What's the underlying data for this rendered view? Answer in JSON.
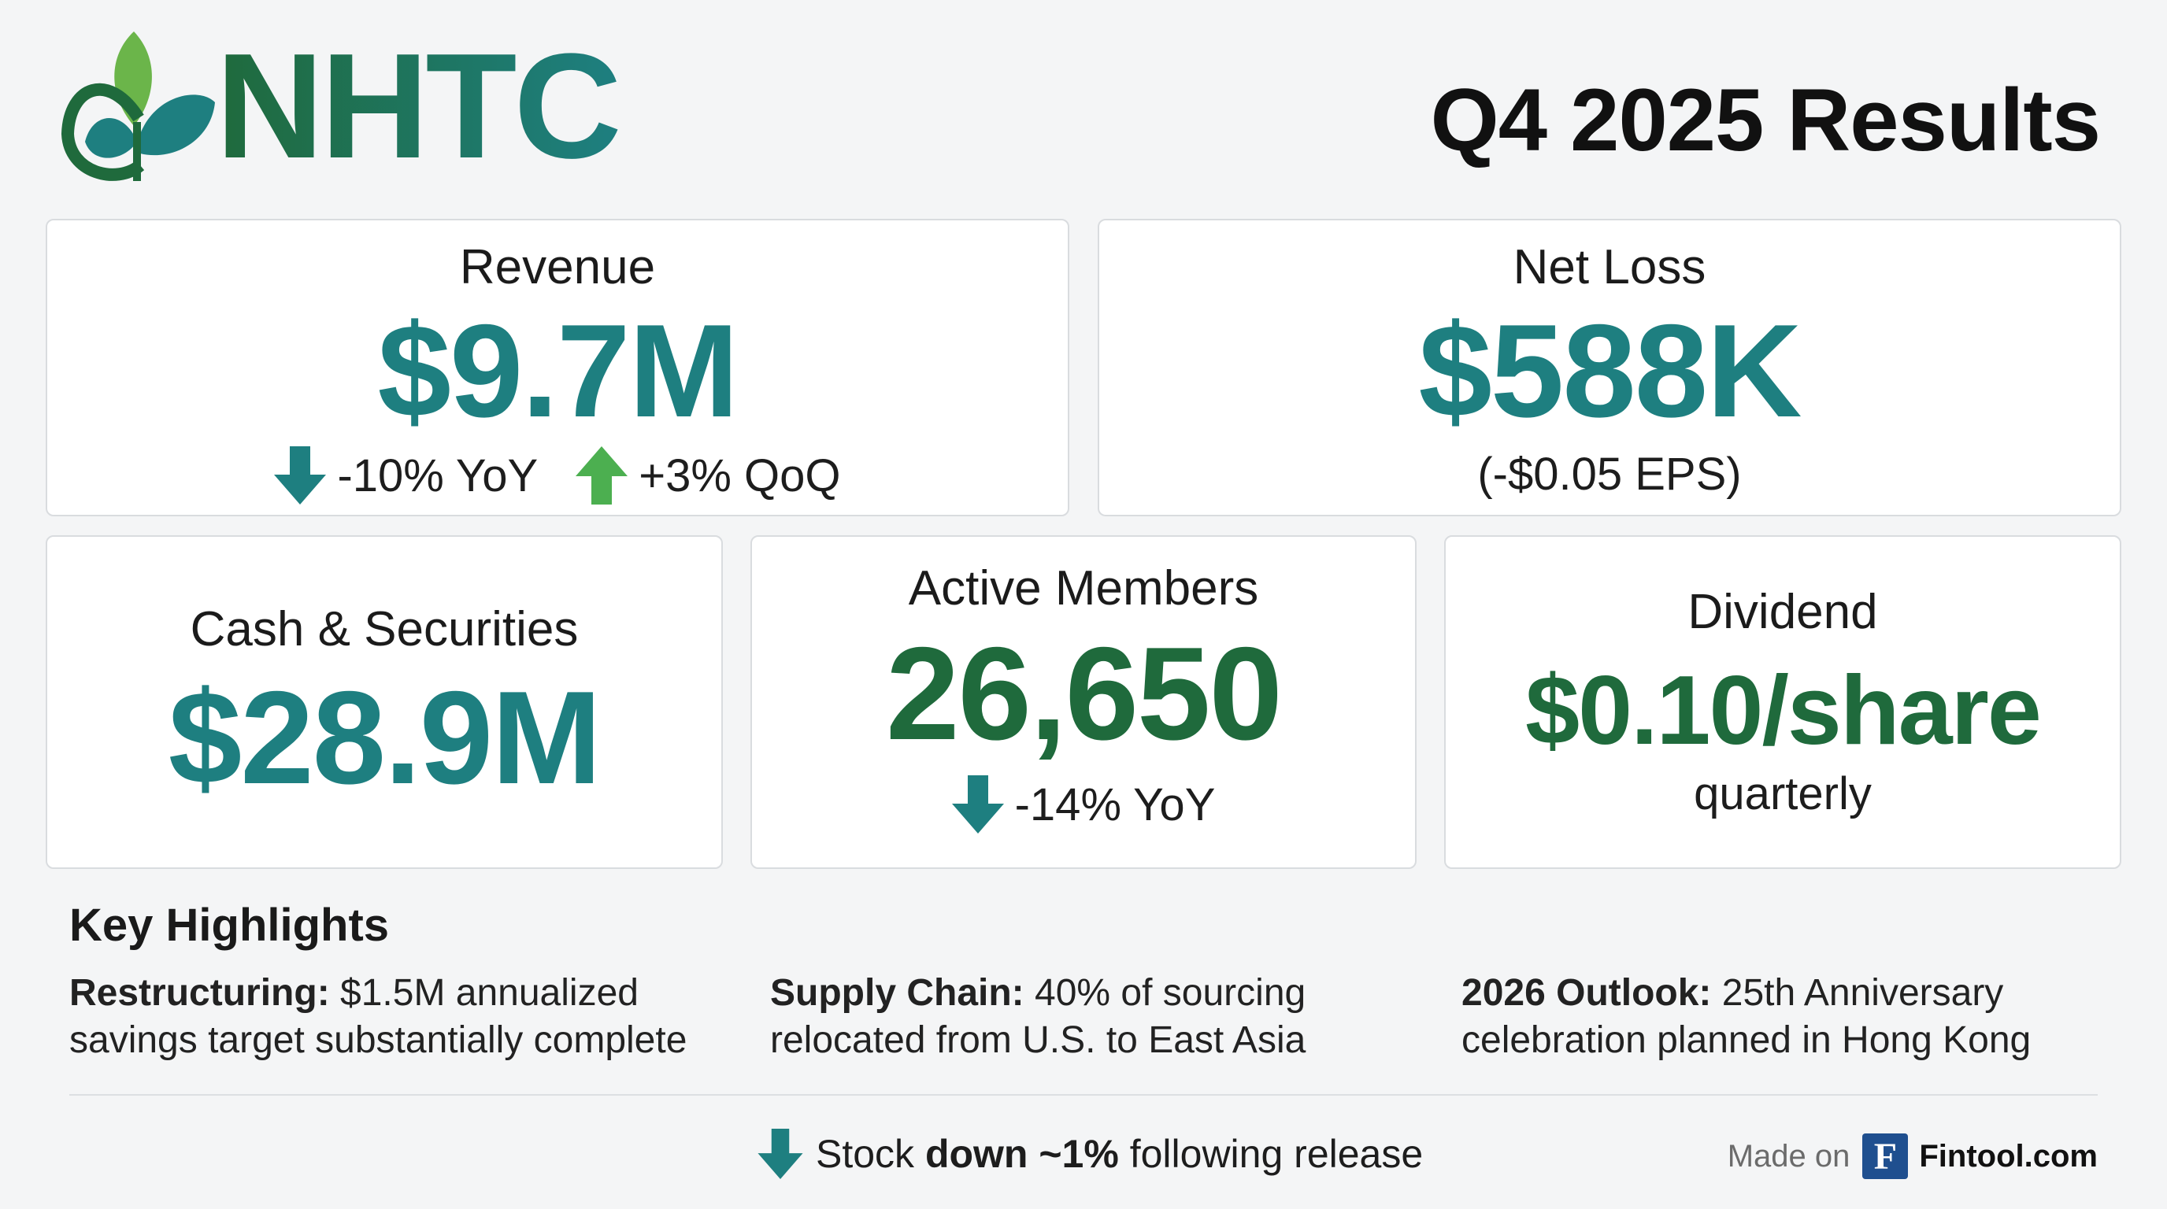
{
  "header": {
    "brand": "NHTC",
    "title": "Q4 2025 Results"
  },
  "colors": {
    "teal": "#1e7f80",
    "dark_green": "#1f6a3c",
    "up_green": "#4caf50",
    "leaf_green": "#6bb54a",
    "fintool_blue": "#1f4f8f"
  },
  "metrics": {
    "revenue": {
      "label": "Revenue",
      "value": "$9.7M",
      "yoy": "-10% YoY",
      "qoq": "+3% QoQ"
    },
    "net_loss": {
      "label": "Net Loss",
      "value": "$588K",
      "eps": "(-$0.05 EPS)"
    },
    "cash": {
      "label": "Cash & Securities",
      "value": "$28.9M"
    },
    "members": {
      "label": "Active Members",
      "value": "26,650",
      "yoy": "-14% YoY"
    },
    "dividend": {
      "label": "Dividend",
      "value": "$0.10/share",
      "note": "quarterly"
    }
  },
  "highlights": {
    "title": "Key Highlights",
    "items": [
      {
        "bold": "Restructuring:",
        "text": " $1.5M annualized",
        "line2": "savings target substantially complete"
      },
      {
        "bold": "Supply Chain:",
        "text": " 40% of sourcing",
        "line2": "relocated from U.S. to East Asia"
      },
      {
        "bold": "2026 Outlook:",
        "text": " 25th Anniversary",
        "line2": "celebration planned in Hong Kong"
      }
    ]
  },
  "footer": {
    "stock_pre": "Stock ",
    "stock_bold": "down ~1%",
    "stock_post": " following release",
    "made_on": "Made on",
    "fintool_letter": "F",
    "fintool": "Fintool.com"
  }
}
